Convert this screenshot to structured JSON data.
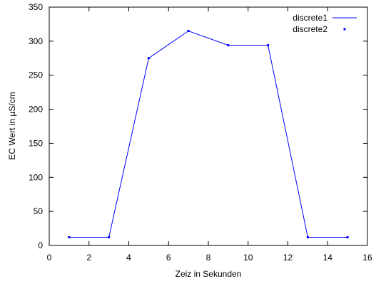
{
  "chart_data": {
    "type": "line",
    "xlabel": "Zeiz in Sekunden",
    "ylabel": "EC Wert in µS/cm",
    "xlim": [
      0,
      16
    ],
    "ylim": [
      0,
      350
    ],
    "xticks": [
      0,
      2,
      4,
      6,
      8,
      10,
      12,
      14,
      16
    ],
    "yticks": [
      0,
      50,
      100,
      150,
      200,
      250,
      300,
      350
    ],
    "grid": false,
    "legend_position": "top-right",
    "line_color": "#0000ff",
    "series": [
      {
        "name": "discrete1",
        "style": "line",
        "x": [
          1,
          3,
          5,
          7,
          9,
          11,
          13,
          15
        ],
        "y": [
          12,
          12,
          275,
          315,
          294,
          294,
          12,
          12
        ]
      },
      {
        "name": "discrete2",
        "style": "points",
        "x": [
          1,
          3,
          5,
          7,
          9,
          11,
          13,
          15
        ],
        "y": [
          12,
          12,
          275,
          315,
          294,
          294,
          12,
          12
        ]
      }
    ]
  }
}
